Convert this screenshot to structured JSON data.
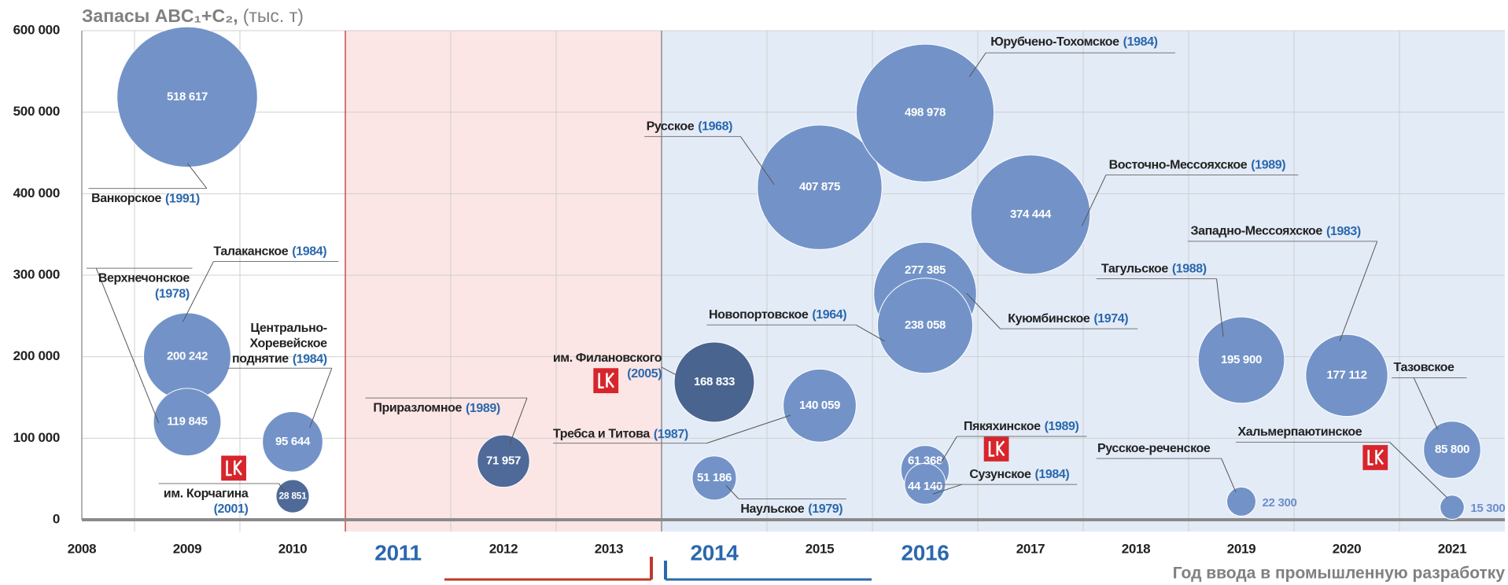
{
  "chart_data": {
    "type": "bubble",
    "title": "Запасы ABC₁+C₂,",
    "unit": "(тыс. т)",
    "x_label": "Год ввода в промышленную разработку",
    "names": [
      "Ванкорское",
      "Талаканское",
      "Верхнечонское",
      "Центрально-Хоревейское поднятие",
      "им. Корчагина",
      "Приразломное",
      "им. Филановского",
      "Требса и Титова",
      "Наульское",
      "Русское",
      "Юрубчено-Тохомское",
      "Куюмбинское",
      "Новопортовское",
      "Восточно-Мессояхское",
      "Пякяхинское",
      "Сузунское",
      "Тагульское",
      "Западно-Мессояхское",
      "Русское-реченское",
      "Хальмерпаютинское",
      "Тазовское"
    ],
    "discovery": [
      "(1991)",
      "(1984)",
      "(1978)",
      "(1984)",
      "(2001)",
      "(1989)",
      "(2005)",
      "(1987)",
      "(1979)",
      "(1968)",
      "(1984)",
      "(1974)",
      "(1964)",
      "(1989)",
      "(1989)",
      "(1984)",
      "(1988)",
      "(1983)",
      null,
      null,
      null
    ],
    "x": [
      2009,
      2009,
      2009,
      2010,
      2010,
      2012,
      2014,
      2015,
      2014,
      2015,
      2016,
      2016,
      2016,
      2017,
      2016,
      2016,
      2019,
      2020,
      2019,
      2021,
      2021
    ],
    "values": [
      518617,
      200242,
      119845,
      95644,
      28851,
      71957,
      168833,
      140059,
      51186,
      407875,
      498978,
      277385,
      238058,
      374444,
      61368,
      44140,
      195900,
      177112,
      22300,
      15300,
      85800
    ],
    "value_labels": [
      "518 617",
      "200 242",
      "119 845",
      "95 644",
      "28 851",
      "71 957",
      "168 833",
      "140 059",
      "51 186",
      "407 875",
      "498 978",
      "277 385",
      "238 058",
      "374 444",
      "61 368",
      "44 140",
      "195 900",
      "177 112",
      "22 300",
      "15 300",
      "85 800"
    ],
    "colors": [
      "#7393c8",
      "#7393c8",
      "#7393c8",
      "#7393c8",
      "#4f6a98",
      "#4f6a98",
      "#4a6490",
      "#7393c8",
      "#7393c8",
      "#7393c8",
      "#7393c8",
      "#7393c8",
      "#7393c8",
      "#7393c8",
      "#7393c8",
      "#7393c8",
      "#7393c8",
      "#7393c8",
      "#7393c8",
      "#7393c8",
      "#7393c8"
    ],
    "xlim": [
      2008,
      2021.5
    ],
    "xticks": [
      2008,
      2009,
      2010,
      2011,
      2012,
      2013,
      2014,
      2015,
      2016,
      2017,
      2018,
      2019,
      2020,
      2021
    ],
    "ylim": [
      0,
      600000
    ],
    "yticks": [
      0,
      {
        "value": 100000,
        "label": "100 000"
      },
      {
        "value": 200000,
        "label": "200 000"
      },
      {
        "value": 300000,
        "label": "300 000"
      },
      {
        "value": 400000,
        "label": "400 000"
      },
      {
        "value": 500000,
        "label": "500 000"
      },
      {
        "value": 600000,
        "label": "600 000"
      }
    ],
    "bands": [
      {
        "from": 2010.5,
        "to": 2013.5,
        "color": "#fbe5e5"
      },
      {
        "from": 2013.5,
        "to": 2021.5,
        "color": "#e3ebf7"
      }
    ],
    "grid": true
  }
}
